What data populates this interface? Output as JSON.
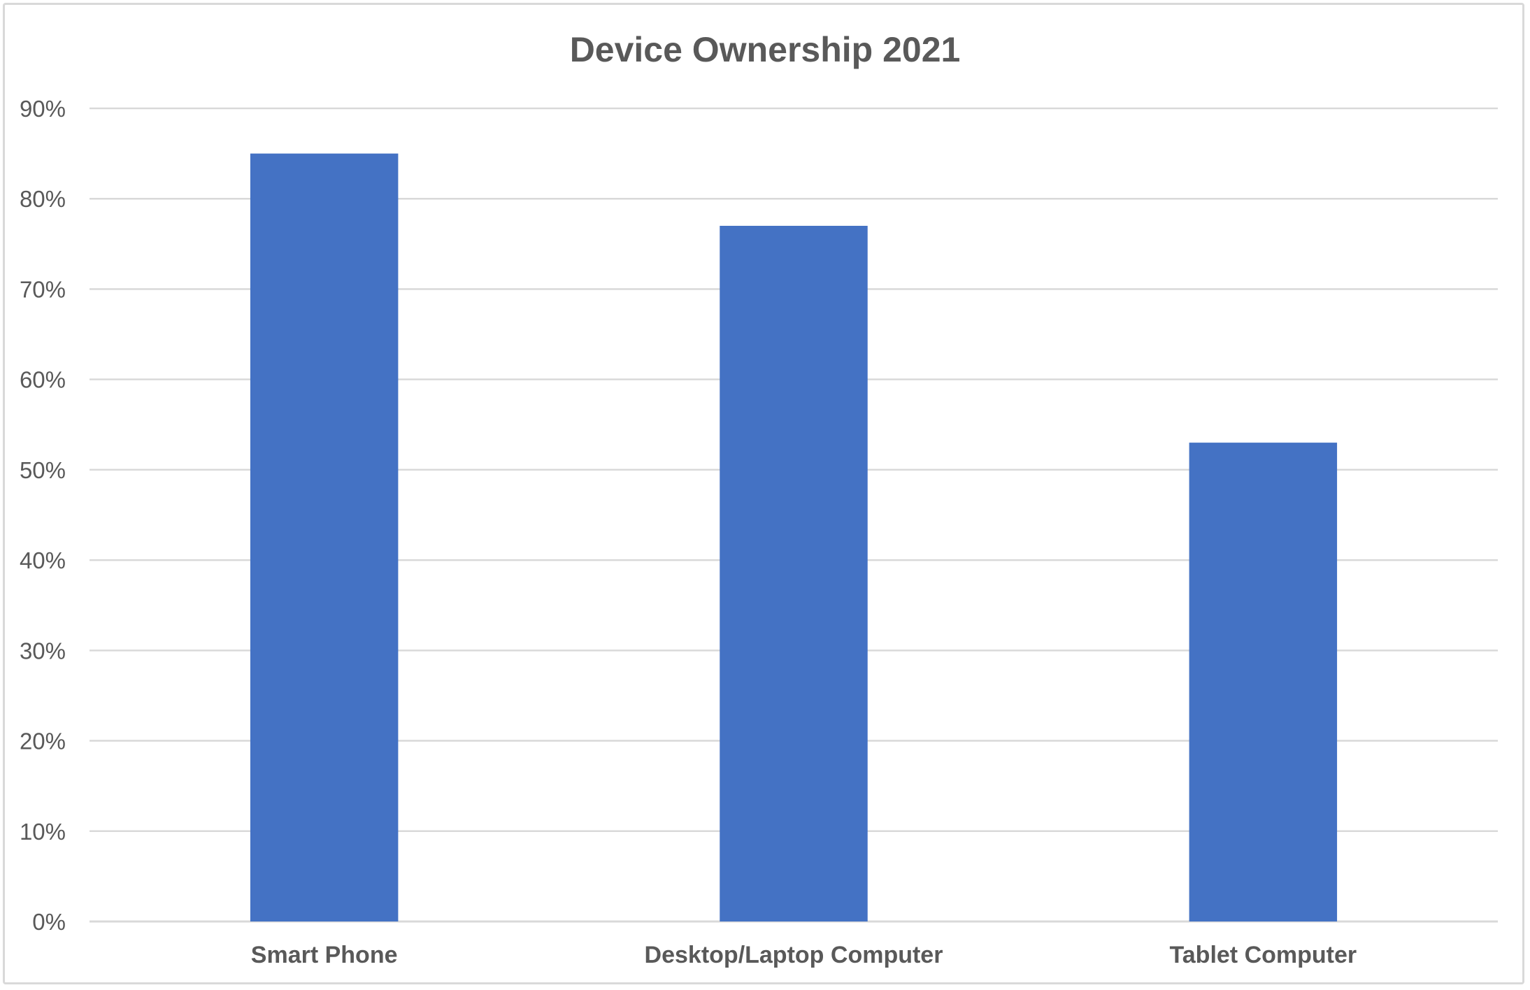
{
  "chart_data": {
    "type": "bar",
    "title": "Device Ownership 2021",
    "xlabel": "",
    "ylabel": "",
    "categories": [
      "Smart Phone",
      "Desktop/Laptop Computer",
      "Tablet Computer"
    ],
    "values": [
      85,
      77,
      53
    ],
    "unit": "%",
    "ylim": [
      0,
      90
    ],
    "yticks": [
      "0%",
      "10%",
      "20%",
      "30%",
      "40%",
      "50%",
      "60%",
      "70%",
      "80%",
      "90%"
    ],
    "grid": true,
    "legend": "none",
    "colors": {
      "bar": "#4472C4",
      "grid": "#d9d9d9",
      "text": "#595959"
    }
  }
}
